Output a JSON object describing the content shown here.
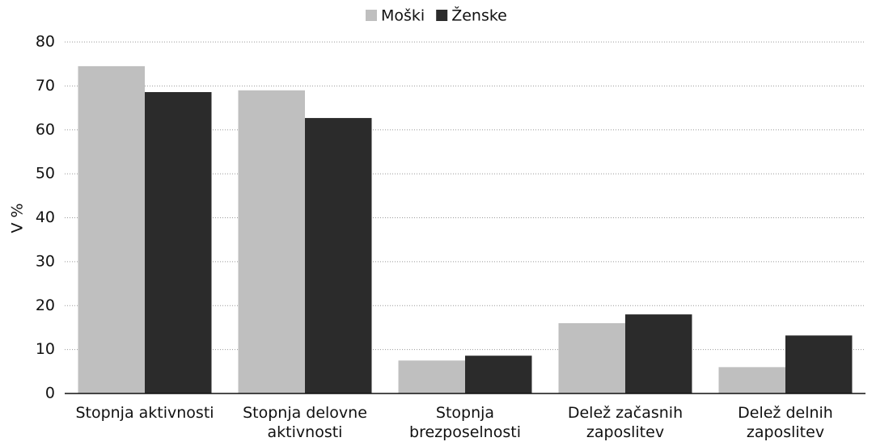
{
  "chart_data": {
    "type": "bar",
    "y_label": "V %",
    "categories": [
      "Stopnja aktivnosti",
      "Stopnja delovne aktivnosti",
      "Stopnja brezposelnosti",
      "Delež začasnih zaposlitev",
      "Delež delnih zaposlitev"
    ],
    "series": [
      {
        "name": "Moški",
        "color": "#bfbfbf",
        "values": [
          74.5,
          69,
          7.5,
          16,
          6
        ]
      },
      {
        "name": "Ženske",
        "color": "#2b2b2b",
        "values": [
          68.6,
          62.7,
          8.6,
          18,
          13.2
        ]
      }
    ],
    "ylim": [
      0,
      80
    ],
    "yticks": [
      0,
      10,
      20,
      30,
      40,
      50,
      60,
      70,
      80
    ],
    "grid": true,
    "legend": "top"
  }
}
